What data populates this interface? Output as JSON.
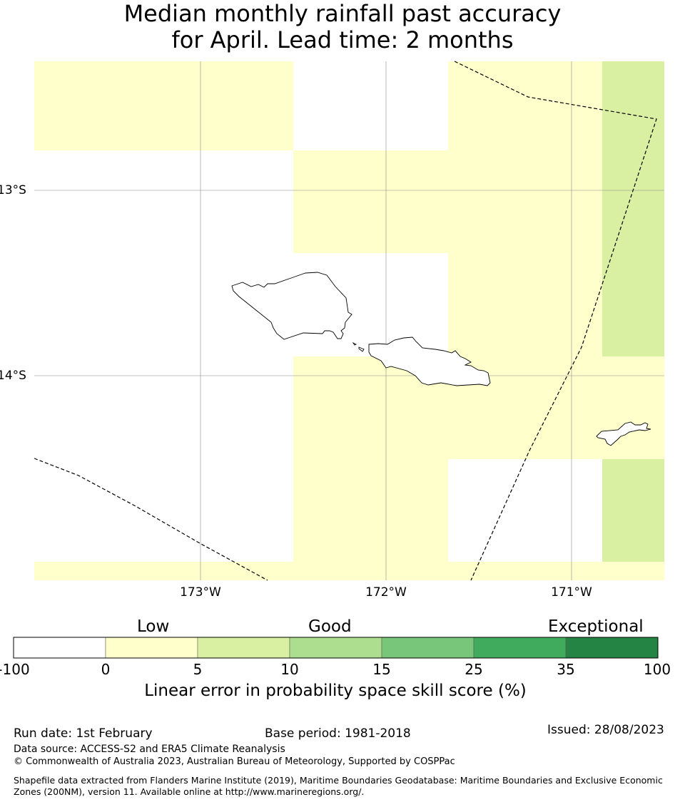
{
  "title": {
    "line1": "Median monthly rainfall past accuracy",
    "line2": "for April. Lead time: 2 months"
  },
  "map": {
    "lat_labels": [
      "13°S",
      "14°S"
    ],
    "lon_labels": [
      "173°W",
      "172°W",
      "171°W"
    ],
    "colors": {
      "white": "#ffffff",
      "low": "#ffffcc",
      "good_low": "#d9f0a3",
      "ocean": "#ffffff"
    }
  },
  "colorbar": {
    "categories": [
      "Low",
      "Good",
      "Exceptional"
    ],
    "ticks": [
      "-100",
      "0",
      "5",
      "10",
      "15",
      "25",
      "35",
      "100"
    ],
    "colors": [
      "#ffffff",
      "#ffffcc",
      "#d9f0a3",
      "#addd8e",
      "#78c679",
      "#41ab5d",
      "#238443"
    ],
    "label": "Linear error in probability space skill score (%)"
  },
  "footer": {
    "run_date": "Run date: 1st February",
    "base_period": "Base period: 1981-2018",
    "issued": "Issued: 28/08/2023",
    "data_source": "Data source: ACCESS-S2 and ERA5 Climate Reanalysis",
    "copyright": "© Commonwealth of Australia 2023, Australian Bureau of Meteorology, Supported by COSPPac",
    "shapefile": "Shapefile data extracted from Flanders Marine Institute (2019), Maritime Boundaries Geodatabase: Maritime Boundaries and Exclusive Economic Zones (200NM), version 11. Available online at http://www.marineregions.org/."
  }
}
